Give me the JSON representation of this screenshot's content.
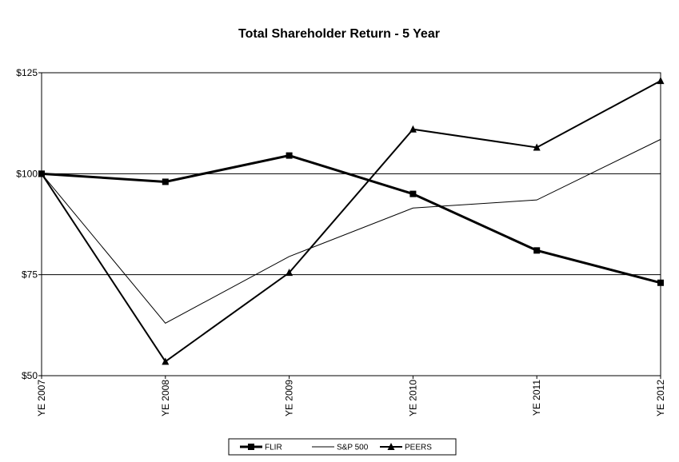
{
  "chart_data": {
    "type": "line",
    "title": "Total Shareholder Return - 5 Year",
    "xlabel": "",
    "ylabel": "",
    "categories": [
      "YE 2007",
      "YE 2008",
      "YE 2009",
      "YE 2010",
      "YE 2011",
      "YE 2012"
    ],
    "ylim": [
      50,
      125
    ],
    "yticks": [
      50,
      75,
      100,
      125
    ],
    "ytick_labels": [
      "$50",
      "$75",
      "$100",
      "$125"
    ],
    "grid": "horizontal",
    "legend_position": "bottom",
    "series": [
      {
        "name": "FLIR",
        "marker": "square",
        "weight": "heavy",
        "values": [
          100,
          98,
          104.5,
          95,
          81,
          73
        ]
      },
      {
        "name": "S&P 500",
        "marker": "none",
        "weight": "thin",
        "values": [
          100,
          63,
          79.5,
          91.5,
          93.5,
          108.5
        ]
      },
      {
        "name": "PEERS",
        "marker": "triangle",
        "weight": "medium",
        "values": [
          100,
          53.5,
          75.5,
          111,
          106.5,
          123
        ]
      }
    ]
  }
}
